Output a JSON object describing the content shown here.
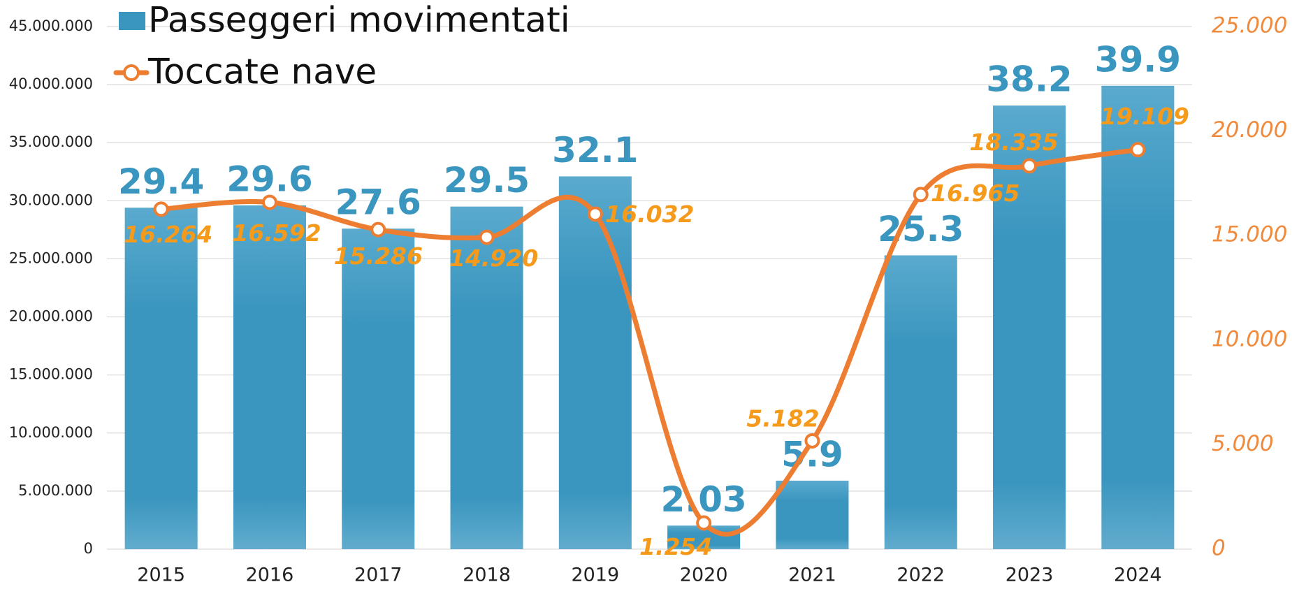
{
  "chart_data": {
    "type": "bar-line",
    "categories": [
      "2015",
      "2016",
      "2017",
      "2018",
      "2019",
      "2020",
      "2021",
      "2022",
      "2023",
      "2024"
    ],
    "series": [
      {
        "name": "Passeggeri movimentati",
        "color": "#3a96bf",
        "type": "bar",
        "values": [
          29400000,
          29600000,
          27600000,
          29500000,
          32100000,
          2030000,
          5900000,
          25300000,
          38200000,
          39900000
        ],
        "value_labels": [
          "29.4",
          "29.6",
          "27.6",
          "29.5",
          "32.1",
          "2.03",
          "5.9",
          "25.3",
          "38.2",
          "39.9"
        ]
      },
      {
        "name": "Toccate nave",
        "color": "#ed7d31",
        "type": "line",
        "axis": "y2",
        "values": [
          16264,
          16592,
          15286,
          14920,
          16032,
          1254,
          5182,
          16965,
          18335,
          19109
        ],
        "value_labels": [
          "16.264",
          "16.592",
          "15.286",
          "14.920",
          "16.032",
          "1.254",
          "5.182",
          "16.965",
          "18.335",
          "19.109"
        ]
      }
    ],
    "ylim": [
      0,
      45000000
    ],
    "yticks": [
      0,
      {
        "value": 5000000,
        "label": "5.000.000"
      },
      {
        "value": 10000000,
        "label": "10.000.000"
      },
      {
        "value": 15000000,
        "label": "15.000.000"
      },
      {
        "value": 20000000,
        "label": "20.000.000"
      },
      {
        "value": 25000000,
        "label": "25.000.000"
      },
      {
        "value": 30000000,
        "label": "30.000.000"
      },
      {
        "value": 35000000,
        "label": "35.000.000"
      },
      {
        "value": 40000000,
        "label": "40.000.000"
      },
      {
        "value": 45000000,
        "label": "45.000.000"
      }
    ],
    "y2lim": [
      0,
      25000
    ],
    "y2ticks": [
      0,
      {
        "value": 5000,
        "label": "5.000"
      },
      {
        "value": 10000,
        "label": "10.000"
      },
      {
        "value": 15000,
        "label": "15.000"
      },
      {
        "value": 20000,
        "label": "20.000"
      },
      {
        "value": 25000,
        "label": "25.000"
      }
    ],
    "grid": true,
    "legend": "top-left"
  }
}
